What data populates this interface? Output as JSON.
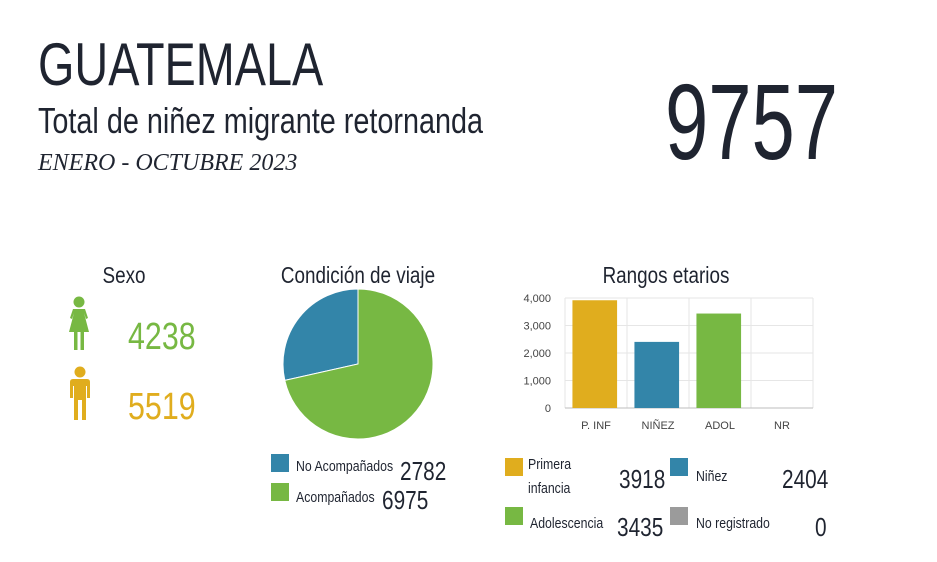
{
  "header": {
    "title": "GUATEMALA",
    "subtitle": "Total de niñez migrante retornanda",
    "period": "ENERO - OCTUBRE 2023",
    "total": "9757"
  },
  "sexo": {
    "title": "Sexo",
    "female_count": "4238",
    "male_count": "5519",
    "female_icon": "female-person-icon",
    "male_icon": "male-person-icon",
    "female_color": "#77b843",
    "male_color": "#e0ad1e"
  },
  "condicion": {
    "title": "Condición de viaje",
    "legend": [
      {
        "label": "No Acompañados",
        "value": "2782",
        "color": "#3385a9"
      },
      {
        "label": "Acompañados",
        "value": "6975",
        "color": "#77b843"
      }
    ]
  },
  "rangos": {
    "title": "Rangos etarios",
    "legend": [
      {
        "label_line1": "Primera",
        "label_line2": "infancia",
        "value": "3918",
        "color": "#e0ad1e"
      },
      {
        "label": "Niñez",
        "value": "2404",
        "color": "#3385a9"
      },
      {
        "label": "Adolescencia",
        "value": "3435",
        "color": "#77b843"
      },
      {
        "label": "No registrado",
        "value": "0",
        "color": "#9b9b9b"
      }
    ]
  },
  "chart_data": [
    {
      "type": "pie",
      "title": "Condición de viaje",
      "categories": [
        "No Acompañados",
        "Acompañados"
      ],
      "values": [
        2782,
        6975
      ],
      "colors": [
        "#3385a9",
        "#77b843"
      ],
      "legend": "bottom"
    },
    {
      "type": "bar",
      "title": "Rangos etarios",
      "categories": [
        "P. INF",
        "NIÑEZ",
        "ADOL",
        "NR"
      ],
      "values": [
        3918,
        2404,
        3435,
        0
      ],
      "colors": [
        "#e0ad1e",
        "#3385a9",
        "#77b843",
        "#9b9b9b"
      ],
      "ylim": [
        0,
        4000
      ],
      "yticks": [
        0,
        1000,
        2000,
        3000,
        4000
      ],
      "ytick_labels": [
        "0",
        "1,000",
        "2,000",
        "3,000",
        "4,000"
      ],
      "grid": true,
      "legend": "bottom"
    }
  ]
}
